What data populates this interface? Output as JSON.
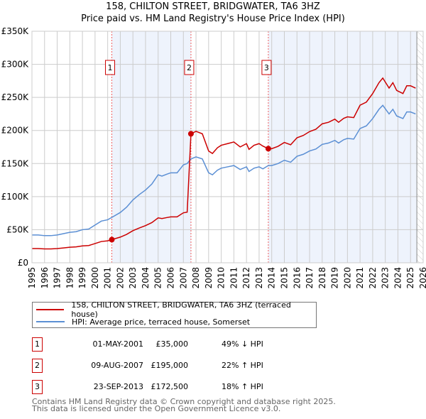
{
  "chart_data": {
    "type": "line",
    "title": "158, CHILTON STREET, BRIDGWATER, TA6 3HZ",
    "subtitle": "Price paid vs. HM Land Registry's House Price Index (HPI)",
    "xlim": [
      1995,
      2026
    ],
    "ylim": [
      0,
      350000
    ],
    "x_ticks": [
      "1995",
      "1996",
      "1997",
      "1998",
      "1999",
      "2000",
      "2001",
      "2002",
      "2003",
      "2004",
      "2005",
      "2006",
      "2007",
      "2008",
      "2009",
      "2010",
      "2011",
      "2012",
      "2013",
      "2014",
      "2015",
      "2016",
      "2017",
      "2018",
      "2019",
      "2020",
      "2021",
      "2022",
      "2023",
      "2024",
      "2025",
      "2026"
    ],
    "y_ticks": [
      {
        "v": 0,
        "label": "£0"
      },
      {
        "v": 50000,
        "label": "£50K"
      },
      {
        "v": 100000,
        "label": "£100K"
      },
      {
        "v": 150000,
        "label": "£150K"
      },
      {
        "v": 200000,
        "label": "£200K"
      },
      {
        "v": 250000,
        "label": "£250K"
      },
      {
        "v": 300000,
        "label": "£300K"
      },
      {
        "v": 350000,
        "label": "£350K"
      }
    ],
    "grid": true,
    "forecast_from": 2025.5,
    "colors": {
      "property": "#cc0000",
      "hpi": "#5b8fd4",
      "shade": "#eef3fc"
    },
    "series": [
      {
        "name": "158, CHILTON STREET, BRIDGWATER, TA6 3HZ (terraced house)",
        "derived_from": "hpi scaled to sales"
      },
      {
        "name": "HPI: Average price, terraced house, Somerset",
        "x": [
          1995,
          1995.5,
          1996,
          1996.5,
          1997,
          1997.5,
          1998,
          1998.5,
          1999,
          1999.5,
          2000,
          2000.5,
          2001,
          2001.33,
          2002,
          2002.5,
          2003,
          2003.5,
          2004,
          2004.5,
          2005,
          2005.3,
          2005.7,
          2006,
          2006.5,
          2007,
          2007.3,
          2007.6,
          2008,
          2008.5,
          2009,
          2009.3,
          2009.7,
          2010,
          2010.5,
          2011,
          2011.5,
          2012,
          2012.2,
          2012.6,
          2013,
          2013.3,
          2013.73,
          2014,
          2014.5,
          2015,
          2015.5,
          2016,
          2016.5,
          2017,
          2017.5,
          2018,
          2018.5,
          2019,
          2019.3,
          2019.7,
          2020,
          2020.5,
          2021,
          2021.5,
          2022,
          2022.5,
          2022.8,
          2023.3,
          2023.6,
          2023.9,
          2024.4,
          2024.7,
          2025,
          2025.4
        ],
        "y": [
          42000,
          42000,
          41000,
          41000,
          42000,
          44000,
          46000,
          47000,
          50000,
          51000,
          57000,
          63000,
          65000,
          68600,
          76000,
          84000,
          95000,
          103000,
          110000,
          119000,
          133000,
          131000,
          134000,
          136000,
          136000,
          148000,
          150000,
          157000,
          160000,
          157000,
          136000,
          133000,
          140000,
          143000,
          145000,
          147000,
          141000,
          145000,
          138000,
          143000,
          145000,
          142000,
          147000,
          147000,
          150000,
          155000,
          152000,
          161000,
          164000,
          169000,
          172000,
          179000,
          181000,
          185000,
          181000,
          186000,
          188000,
          187000,
          203000,
          207000,
          218000,
          232000,
          238000,
          225000,
          232000,
          222000,
          218000,
          228000,
          228000,
          225000
        ]
      }
    ],
    "sales": [
      {
        "n": "1",
        "x": 2001.33,
        "date": "01-MAY-2001",
        "price": 35000,
        "price_label": "£35,000",
        "hpi": "49% ↓ HPI"
      },
      {
        "n": "2",
        "x": 2007.6,
        "date": "09-AUG-2007",
        "price": 195000,
        "price_label": "£195,000",
        "hpi": "22% ↑ HPI"
      },
      {
        "n": "3",
        "x": 2013.73,
        "date": "23-SEP-2013",
        "price": 172500,
        "price_label": "£172,500",
        "hpi": "18% ↑ HPI"
      }
    ]
  },
  "footer": {
    "line1": "Contains HM Land Registry data © Crown copyright and database right 2025.",
    "line2": "This data is licensed under the Open Government Licence v3.0."
  }
}
